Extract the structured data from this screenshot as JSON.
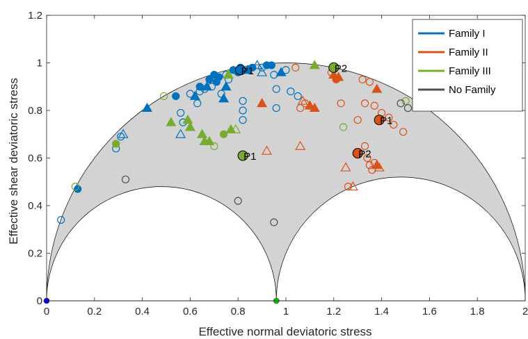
{
  "chart_data": {
    "type": "scatter",
    "xlabel": "Effective normal deviatoric stress",
    "ylabel": "Effective shear deviatoric stress",
    "xlim": [
      0,
      2
    ],
    "ylim": [
      0,
      1.2
    ],
    "x_ticks": [
      0,
      0.2,
      0.4,
      0.6,
      0.8,
      1,
      1.2,
      1.4,
      1.6,
      1.8,
      2
    ],
    "x_tick_labels": [
      "0",
      "0.2",
      "0.4",
      "0.6",
      "0.8",
      "1",
      "1.2",
      "1.4",
      "1.6",
      "1.8",
      "2"
    ],
    "y_ticks": [
      0,
      0.2,
      0.4,
      0.6,
      0.8,
      1,
      1.2
    ],
    "y_tick_labels": [
      "0",
      "0.2",
      "0.4",
      "0.6",
      "0.8",
      "1",
      "1.2"
    ],
    "mohr_region": {
      "outer_circle": {
        "center": 1.0,
        "radius": 1.0
      },
      "inner_circle_1": {
        "center": 0.48,
        "radius": 0.48
      },
      "inner_circle_2": {
        "center": 1.48,
        "radius": 0.52
      },
      "fill_color": "#d3d3d3",
      "reference_points": [
        {
          "x": 0,
          "y": 0,
          "color": "#0000ff"
        },
        {
          "x": 0.96,
          "y": 0,
          "color": "#00cc00"
        }
      ]
    },
    "legend": {
      "position": "top-right",
      "entries": [
        {
          "label": "Family I",
          "color": "#0072bd"
        },
        {
          "label": "Family II",
          "color": "#d95319"
        },
        {
          "label": "Family III",
          "color": "#77ac30"
        },
        {
          "label": "No Family",
          "color": "#4d4d4d"
        }
      ]
    },
    "series": [
      {
        "name": "Family I",
        "color": "#0072bd",
        "points": [
          {
            "x": 0.06,
            "y": 0.34,
            "m": "o",
            "f": false
          },
          {
            "x": 0.13,
            "y": 0.47,
            "m": "o",
            "f": true
          },
          {
            "x": 0.29,
            "y": 0.64,
            "m": "o",
            "f": false
          },
          {
            "x": 0.31,
            "y": 0.69,
            "m": "o",
            "f": false
          },
          {
            "x": 0.32,
            "y": 0.7,
            "m": "^",
            "f": false
          },
          {
            "x": 0.42,
            "y": 0.81,
            "m": "^",
            "f": true
          },
          {
            "x": 0.54,
            "y": 0.86,
            "m": "o",
            "f": true
          },
          {
            "x": 0.56,
            "y": 0.79,
            "m": "o",
            "f": false
          },
          {
            "x": 0.56,
            "y": 0.7,
            "m": "^",
            "f": false
          },
          {
            "x": 0.57,
            "y": 0.75,
            "m": "o",
            "f": false
          },
          {
            "x": 0.6,
            "y": 0.87,
            "m": "o",
            "f": false
          },
          {
            "x": 0.62,
            "y": 0.86,
            "m": "^",
            "f": true
          },
          {
            "x": 0.63,
            "y": 0.83,
            "m": "o",
            "f": false
          },
          {
            "x": 0.64,
            "y": 0.88,
            "m": "o",
            "f": false
          },
          {
            "x": 0.64,
            "y": 0.9,
            "m": "o",
            "f": true
          },
          {
            "x": 0.66,
            "y": 0.89,
            "m": "o",
            "f": false
          },
          {
            "x": 0.67,
            "y": 0.9,
            "m": "^",
            "f": true
          },
          {
            "x": 0.68,
            "y": 0.93,
            "m": "o",
            "f": true
          },
          {
            "x": 0.69,
            "y": 0.9,
            "m": "o",
            "f": false
          },
          {
            "x": 0.7,
            "y": 0.95,
            "m": "o",
            "f": true
          },
          {
            "x": 0.71,
            "y": 0.92,
            "m": "o",
            "f": true
          },
          {
            "x": 0.72,
            "y": 0.94,
            "m": "o",
            "f": true
          },
          {
            "x": 0.73,
            "y": 0.87,
            "m": "o",
            "f": false
          },
          {
            "x": 0.74,
            "y": 0.85,
            "m": "^",
            "f": true
          },
          {
            "x": 0.75,
            "y": 0.9,
            "m": "^",
            "f": true
          },
          {
            "x": 0.75,
            "y": 0.95,
            "m": "o",
            "f": false
          },
          {
            "x": 0.76,
            "y": 0.93,
            "m": "o",
            "f": false
          },
          {
            "x": 0.78,
            "y": 0.97,
            "m": "o",
            "f": true
          },
          {
            "x": 0.8,
            "y": 0.96,
            "m": "o",
            "f": true
          },
          {
            "x": 0.81,
            "y": 0.98,
            "m": "o",
            "f": true
          },
          {
            "x": 0.82,
            "y": 0.8,
            "m": "o",
            "f": false
          },
          {
            "x": 0.82,
            "y": 0.84,
            "m": "o",
            "f": false
          },
          {
            "x": 0.82,
            "y": 0.76,
            "m": "o",
            "f": false
          },
          {
            "x": 0.84,
            "y": 0.97,
            "m": "^",
            "f": true
          },
          {
            "x": 0.86,
            "y": 0.98,
            "m": "o",
            "f": true
          },
          {
            "x": 0.88,
            "y": 0.99,
            "m": "^",
            "f": false
          },
          {
            "x": 0.9,
            "y": 0.98,
            "m": "o",
            "f": false
          },
          {
            "x": 0.9,
            "y": 0.96,
            "m": "^",
            "f": false
          },
          {
            "x": 0.92,
            "y": 0.99,
            "m": "o",
            "f": true
          },
          {
            "x": 0.94,
            "y": 0.99,
            "m": "o",
            "f": true
          },
          {
            "x": 0.95,
            "y": 0.95,
            "m": "o",
            "f": false
          },
          {
            "x": 0.96,
            "y": 0.89,
            "m": "o",
            "f": false
          },
          {
            "x": 0.96,
            "y": 0.81,
            "m": "o",
            "f": false
          },
          {
            "x": 0.98,
            "y": 0.96,
            "m": "^",
            "f": true
          },
          {
            "x": 1.0,
            "y": 0.97,
            "m": "o",
            "f": false
          },
          {
            "x": 1.02,
            "y": 0.88,
            "m": "o",
            "f": false
          },
          {
            "x": 1.05,
            "y": 0.86,
            "m": "o",
            "f": false
          }
        ]
      },
      {
        "name": "Family II",
        "color": "#d95319",
        "points": [
          {
            "x": 0.9,
            "y": 0.83,
            "m": "^",
            "f": true
          },
          {
            "x": 0.92,
            "y": 0.63,
            "m": "^",
            "f": false
          },
          {
            "x": 1.04,
            "y": 0.98,
            "m": "o",
            "f": false
          },
          {
            "x": 1.06,
            "y": 0.65,
            "m": "^",
            "f": false
          },
          {
            "x": 1.06,
            "y": 0.81,
            "m": "o",
            "f": false
          },
          {
            "x": 1.07,
            "y": 0.84,
            "m": "^",
            "f": false
          },
          {
            "x": 1.08,
            "y": 0.83,
            "m": "o",
            "f": false
          },
          {
            "x": 1.1,
            "y": 0.82,
            "m": "^",
            "f": true
          },
          {
            "x": 1.12,
            "y": 0.81,
            "m": "^",
            "f": true
          },
          {
            "x": 1.19,
            "y": 0.96,
            "m": "o",
            "f": false
          },
          {
            "x": 1.2,
            "y": 0.95,
            "m": "^",
            "f": true
          },
          {
            "x": 1.21,
            "y": 0.93,
            "m": "o",
            "f": true
          },
          {
            "x": 1.22,
            "y": 0.94,
            "m": "^",
            "f": true
          },
          {
            "x": 1.23,
            "y": 0.83,
            "m": "o",
            "f": false
          },
          {
            "x": 1.25,
            "y": 0.56,
            "m": "^",
            "f": false
          },
          {
            "x": 1.26,
            "y": 0.48,
            "m": "o",
            "f": false
          },
          {
            "x": 1.28,
            "y": 0.48,
            "m": "^",
            "f": false
          },
          {
            "x": 1.3,
            "y": 0.76,
            "m": "o",
            "f": false
          },
          {
            "x": 1.32,
            "y": 0.93,
            "m": "o",
            "f": false
          },
          {
            "x": 1.33,
            "y": 0.65,
            "m": "o",
            "f": false
          },
          {
            "x": 1.33,
            "y": 0.83,
            "m": "o",
            "f": false
          },
          {
            "x": 1.34,
            "y": 0.6,
            "m": "o",
            "f": false
          },
          {
            "x": 1.35,
            "y": 0.92,
            "m": "o",
            "f": false
          },
          {
            "x": 1.35,
            "y": 0.57,
            "m": "o",
            "f": false
          },
          {
            "x": 1.36,
            "y": 0.55,
            "m": "o",
            "f": false
          },
          {
            "x": 1.37,
            "y": 0.58,
            "m": "o",
            "f": false
          },
          {
            "x": 1.37,
            "y": 0.82,
            "m": "o",
            "f": false
          },
          {
            "x": 1.38,
            "y": 0.89,
            "m": "^",
            "f": true
          },
          {
            "x": 1.38,
            "y": 0.57,
            "m": "^",
            "f": true
          },
          {
            "x": 1.39,
            "y": 0.56,
            "m": "^",
            "f": false
          },
          {
            "x": 1.4,
            "y": 0.79,
            "m": "o",
            "f": false
          },
          {
            "x": 1.43,
            "y": 0.77,
            "m": "o",
            "f": false
          },
          {
            "x": 1.45,
            "y": 0.74,
            "m": "o",
            "f": false
          },
          {
            "x": 1.49,
            "y": 0.71,
            "m": "o",
            "f": false
          }
        ]
      },
      {
        "name": "Family III",
        "color": "#77ac30",
        "points": [
          {
            "x": 0.12,
            "y": 0.48,
            "m": "o",
            "f": false
          },
          {
            "x": 0.29,
            "y": 0.66,
            "m": "o",
            "f": true
          },
          {
            "x": 0.49,
            "y": 0.86,
            "m": "o",
            "f": false
          },
          {
            "x": 0.52,
            "y": 0.75,
            "m": "^",
            "f": true
          },
          {
            "x": 0.59,
            "y": 0.76,
            "m": "^",
            "f": true
          },
          {
            "x": 0.6,
            "y": 0.73,
            "m": "^",
            "f": true
          },
          {
            "x": 0.65,
            "y": 0.7,
            "m": "^",
            "f": true
          },
          {
            "x": 0.66,
            "y": 0.67,
            "m": "^",
            "f": true
          },
          {
            "x": 0.68,
            "y": 0.67,
            "m": "^",
            "f": true
          },
          {
            "x": 0.7,
            "y": 0.65,
            "m": "o",
            "f": false
          },
          {
            "x": 0.74,
            "y": 0.7,
            "m": "o",
            "f": true
          },
          {
            "x": 0.76,
            "y": 0.95,
            "m": "^",
            "f": true
          },
          {
            "x": 0.77,
            "y": 0.72,
            "m": "^",
            "f": true
          },
          {
            "x": 0.79,
            "y": 0.72,
            "m": "^",
            "f": false
          },
          {
            "x": 1.12,
            "y": 0.99,
            "m": "^",
            "f": true
          },
          {
            "x": 1.24,
            "y": 0.73,
            "m": "o",
            "f": false
          },
          {
            "x": 1.5,
            "y": 0.84,
            "m": "o",
            "f": false
          }
        ]
      },
      {
        "name": "No Family",
        "color": "#4d4d4d",
        "points": [
          {
            "x": 0.33,
            "y": 0.51,
            "m": "o",
            "f": false
          },
          {
            "x": 0.8,
            "y": 0.42,
            "m": "o",
            "f": false
          },
          {
            "x": 0.95,
            "y": 0.33,
            "m": "o",
            "f": false
          },
          {
            "x": 1.48,
            "y": 0.83,
            "m": "o",
            "f": false
          },
          {
            "x": 1.51,
            "y": 0.81,
            "m": "o",
            "f": false
          }
        ]
      }
    ],
    "annotations": [
      {
        "text": "P1",
        "x": 0.81,
        "y": 0.97,
        "color": "#0072bd"
      },
      {
        "text": "P2",
        "x": 1.2,
        "y": 0.98,
        "color": "#77ac30"
      },
      {
        "text": "P1",
        "x": 1.39,
        "y": 0.76,
        "color": "#d95319"
      },
      {
        "text": "P2",
        "x": 1.3,
        "y": 0.62,
        "color": "#d95319"
      },
      {
        "text": "P1",
        "x": 0.82,
        "y": 0.61,
        "color": "#77ac30"
      }
    ]
  }
}
